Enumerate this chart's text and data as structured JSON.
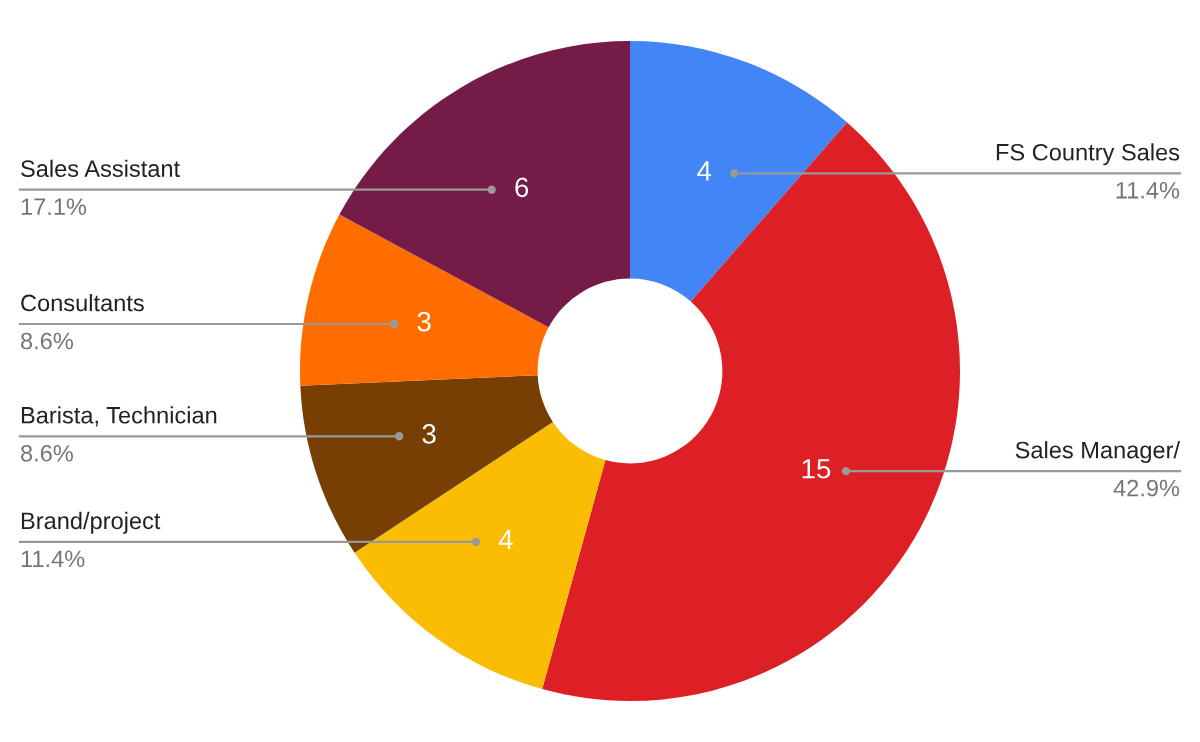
{
  "chart_data": {
    "type": "donut",
    "categories": [
      "FS Country Sales",
      "Sales Manager/",
      "Brand/project",
      "Barista, Technician",
      "Consultants",
      "Sales Assistant"
    ],
    "values": [
      4,
      15,
      4,
      3,
      3,
      6
    ],
    "colors": [
      "#4285f4",
      "#dd2025",
      "#fbbc04",
      "#783f04",
      "#ff6d01",
      "#741b47"
    ],
    "data_labels": true,
    "annotations": [
      "11.4%",
      "42.9%",
      "11.4%",
      "8.6%",
      "8.6%",
      "17.1%"
    ],
    "legend": false
  }
}
